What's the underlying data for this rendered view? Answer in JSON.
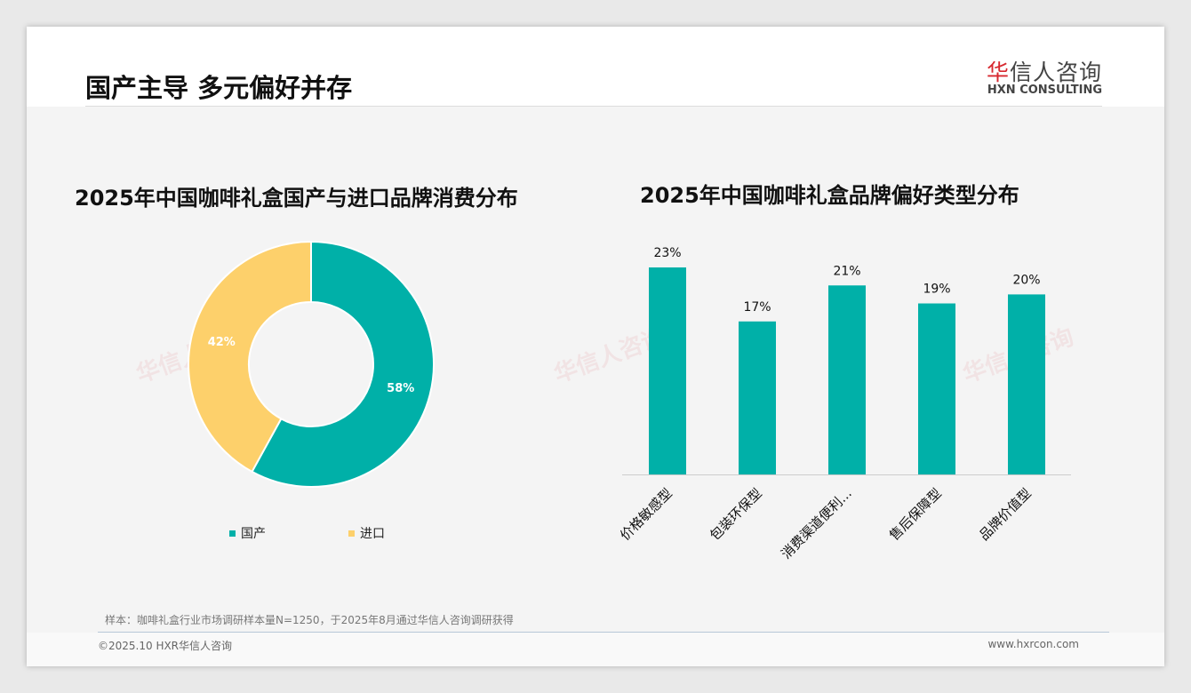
{
  "header": {
    "title": "国产主导 多元偏好并存",
    "logo_cn_accent": "华",
    "logo_cn": "信人咨询",
    "logo_en": "HXN CONSULTING"
  },
  "footer": {
    "note": "样本：咖啡礼盒行业市场调研样本量N=1250，于2025年8月通过华信人咨询调研获得",
    "copyright": "©2025.10 HXR华信人咨询",
    "website": "www.hxrcon.com"
  },
  "colors": {
    "teal": "#00B0A8",
    "yellow": "#FDD06B"
  },
  "chart_data": [
    {
      "type": "pie",
      "title": "2025年中国咖啡礼盒国产与进口品牌消费分布",
      "categories": [
        "国产",
        "进口"
      ],
      "values": [
        58,
        42
      ],
      "labels": [
        "58%",
        "42%"
      ],
      "legend": "bottom"
    },
    {
      "type": "bar",
      "title": "2025年中国咖啡礼盒品牌偏好类型分布",
      "categories": [
        "价格敏感型",
        "包装环保型",
        "消费渠道便利...",
        "售后保障型",
        "品牌价值型"
      ],
      "values": [
        23,
        17,
        21,
        19,
        20
      ],
      "labels": [
        "23%",
        "17%",
        "21%",
        "19%",
        "20%"
      ],
      "ylim": [
        0,
        25
      ]
    }
  ]
}
